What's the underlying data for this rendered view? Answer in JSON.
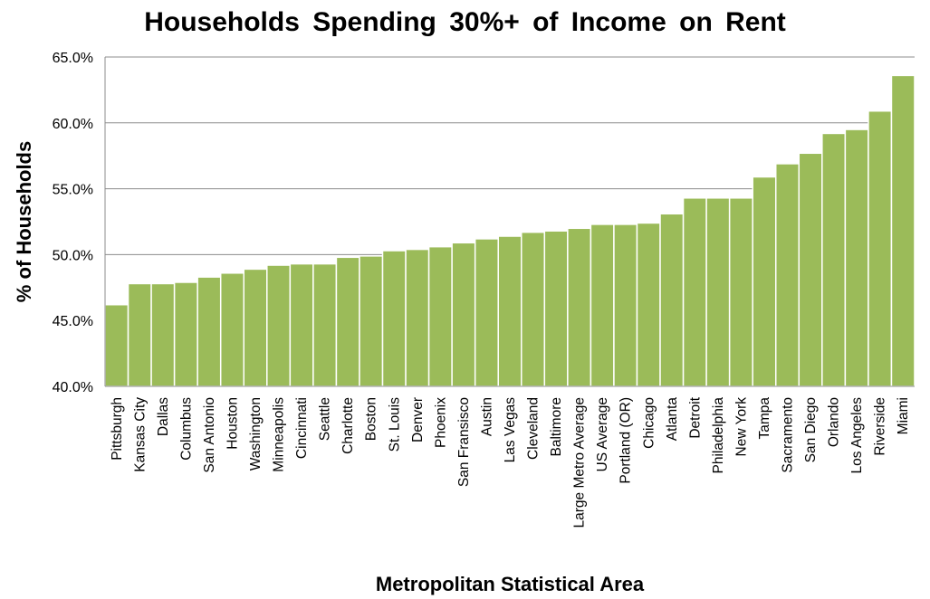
{
  "chart_data": {
    "type": "bar",
    "title": "Households Spending 30%+ of Income on Rent",
    "xlabel": "Metropolitan Statistical Area",
    "ylabel": "% of Households",
    "ylim": [
      40.0,
      65.0
    ],
    "yticks": [
      "40.0%",
      "45.0%",
      "50.0%",
      "55.0%",
      "60.0%",
      "65.0%"
    ],
    "grid": true,
    "legend": "none",
    "bar_color": "#9bbb59",
    "categories": [
      "Pittsburgh",
      "Kansas City",
      "Dallas",
      "Columbus",
      "San Antonio",
      "Houston",
      "Washington",
      "Minneapolis",
      "Cincinnati",
      "Seattle",
      "Charlotte",
      "Boston",
      "St. Louis",
      "Denver",
      "Phoenix",
      "San Fransisco",
      "Austin",
      "Las Vegas",
      "Cleveland",
      "Baltimore",
      "Large Metro Average",
      "US Average",
      "Portland (OR)",
      "Chicago",
      "Atlanta",
      "Detroit",
      "Philadelphia",
      "New York",
      "Tampa",
      "Sacramento",
      "San Diego",
      "Orlando",
      "Los Angeles",
      "Riverside",
      "Miami"
    ],
    "values": [
      46.2,
      47.8,
      47.8,
      47.9,
      48.3,
      48.6,
      48.9,
      49.2,
      49.3,
      49.3,
      49.8,
      49.9,
      50.3,
      50.4,
      50.6,
      50.9,
      51.2,
      51.4,
      51.7,
      51.8,
      52.0,
      52.3,
      52.3,
      52.4,
      53.1,
      54.3,
      54.3,
      54.3,
      55.9,
      56.9,
      57.7,
      59.2,
      59.5,
      60.9,
      63.6
    ]
  }
}
